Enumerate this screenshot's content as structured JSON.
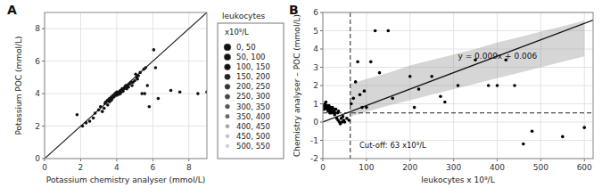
{
  "chart_data": [
    {
      "type": "scatter",
      "title": "A",
      "x_label": "Potassium chemistry analyser (mmol/L)",
      "y_label": "Potassium POC (mmol/L)",
      "xlim": [
        0,
        9
      ],
      "ylim": [
        0,
        9
      ],
      "xticks": [
        0,
        2,
        4,
        6,
        8
      ],
      "yticks": [
        0,
        2,
        4,
        6,
        8
      ],
      "grid": true,
      "color": "#111111",
      "reference_line": {
        "x": [
          0,
          9
        ],
        "values": [
          0,
          9
        ]
      },
      "x": [
        1.8,
        2.1,
        2.3,
        2.5,
        2.7,
        2.8,
        3.0,
        3.1,
        3.2,
        3.3,
        3.35,
        3.4,
        3.5,
        3.5,
        3.6,
        3.6,
        3.7,
        3.7,
        3.75,
        3.8,
        3.85,
        3.9,
        3.9,
        4.0,
        4.0,
        4.0,
        4.05,
        4.1,
        4.1,
        4.15,
        4.2,
        4.2,
        4.25,
        4.3,
        4.3,
        4.35,
        4.4,
        4.45,
        4.5,
        4.5,
        4.55,
        4.6,
        4.65,
        4.7,
        4.8,
        4.85,
        4.9,
        5.0,
        5.05,
        5.1,
        5.15,
        5.2,
        5.3,
        5.4,
        5.5,
        5.55,
        5.6,
        5.7,
        5.8,
        6.05,
        6.15,
        6.3,
        7.0,
        7.5,
        8.5,
        9.0
      ],
      "values": [
        2.7,
        2.0,
        2.2,
        2.3,
        2.5,
        2.8,
        3.0,
        3.2,
        2.9,
        3.1,
        3.4,
        3.5,
        3.3,
        3.6,
        3.5,
        3.7,
        3.6,
        3.8,
        3.7,
        3.9,
        3.8,
        4.0,
        3.9,
        4.1,
        4.0,
        3.9,
        4.0,
        4.1,
        3.95,
        4.1,
        4.2,
        4.0,
        4.1,
        4.2,
        4.3,
        4.15,
        4.3,
        4.4,
        4.4,
        4.5,
        4.3,
        4.5,
        4.4,
        4.6,
        4.7,
        4.5,
        4.7,
        4.8,
        5.2,
        5.0,
        4.9,
        5.1,
        5.3,
        4.0,
        5.5,
        4.0,
        5.6,
        4.5,
        3.2,
        6.7,
        5.6,
        3.7,
        4.2,
        4.1,
        4.0,
        4.1
      ]
    },
    {
      "type": "scatter",
      "title": "B",
      "x_label": "leukocytes x 10⁹/L",
      "y_label": "Chemistry analyser – POC (mmol/L)",
      "xlim": [
        0,
        620
      ],
      "ylim": [
        -2,
        6
      ],
      "xticks": [
        0,
        100,
        200,
        300,
        400,
        500,
        600
      ],
      "yticks": [
        -2,
        -1,
        0,
        1,
        2,
        3,
        4,
        5,
        6
      ],
      "grid": true,
      "color": "#000000",
      "color_key": {
        "title": "leukocytes",
        "header": "x10⁹/L",
        "labels": [
          "0, 50",
          "50, 100",
          "100, 150",
          "150, 200",
          "200, 250",
          "250, 300",
          "300, 350",
          "350, 400",
          "400, 450",
          "450, 500",
          "500, 550"
        ],
        "colors": [
          "#111111",
          "#111111",
          "#111111",
          "#222222",
          "#333333",
          "#444444",
          "#555555",
          "#666666",
          "#aaaaaa",
          "#cccccc",
          "#e0e0e0"
        ]
      },
      "ci": {
        "color": "#999999",
        "x": [
          63,
          150,
          200,
          250,
          300,
          350,
          400,
          450,
          500,
          550,
          600
        ],
        "upper": [
          2.1,
          2.7,
          3.1,
          3.4,
          3.7,
          4.0,
          4.35,
          4.65,
          4.95,
          5.25,
          5.55
        ],
        "lower": [
          0.3,
          0.9,
          1.2,
          1.5,
          1.8,
          2.1,
          2.4,
          2.7,
          3.0,
          3.3,
          3.6
        ]
      },
      "regression": {
        "label": "y = 0.009x + 0.006",
        "x": [
          0,
          620
        ],
        "values": [
          0.006,
          5.586
        ]
      },
      "vline_x": 63,
      "cutoff_label": "Cut-off: 63 x10⁹/L",
      "hline_y": 0.5,
      "x": [
        2,
        3,
        4,
        5,
        6,
        7,
        8,
        9,
        10,
        11,
        12,
        13,
        14,
        15,
        16,
        17,
        18,
        19,
        20,
        22,
        23,
        24,
        25,
        26,
        27,
        28,
        30,
        32,
        34,
        35,
        36,
        38,
        40,
        42,
        44,
        46,
        48,
        50,
        55,
        60,
        65,
        70,
        75,
        80,
        85,
        90,
        95,
        100,
        110,
        120,
        130,
        150,
        160,
        200,
        210,
        220,
        250,
        270,
        280,
        310,
        350,
        380,
        400,
        420,
        440,
        460,
        480,
        550,
        600
      ],
      "values": [
        0.9,
        0.7,
        0.8,
        1.0,
        0.8,
        1.1,
        0.9,
        0.8,
        0.7,
        0.9,
        0.6,
        0.8,
        0.9,
        0.7,
        0.5,
        0.6,
        0.8,
        0.5,
        0.7,
        0.8,
        0.6,
        0.5,
        0.7,
        0.6,
        0.4,
        0.5,
        0.7,
        0.2,
        0.5,
        0.1,
        0.6,
        0.0,
        -0.1,
        0.2,
        -0.0,
        0.3,
        0.1,
        0.0,
        0.2,
        0.1,
        1.0,
        1.3,
        2.2,
        3.3,
        1.5,
        0.8,
        1.7,
        0.8,
        3.3,
        5.0,
        2.7,
        5.0,
        1.3,
        2.5,
        0.8,
        1.8,
        2.5,
        1.4,
        1.1,
        2.0,
        3.4,
        2.0,
        2.0,
        3.4,
        2.0,
        -1.2,
        -0.5,
        -0.8,
        -0.3
      ]
    }
  ]
}
